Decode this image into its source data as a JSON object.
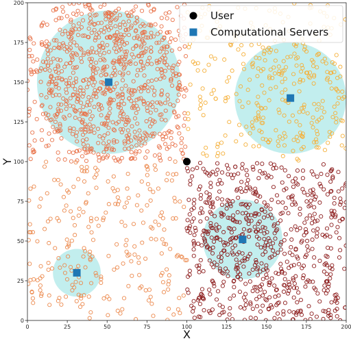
{
  "chart_data": {
    "type": "scatter",
    "title": "",
    "xlabel": "X",
    "ylabel": "Y",
    "xlim": [
      0,
      200
    ],
    "ylim": [
      0,
      200
    ],
    "xticks": [
      0,
      25,
      50,
      75,
      100,
      125,
      150,
      175,
      200
    ],
    "yticks": [
      0,
      25,
      50,
      75,
      100,
      125,
      150,
      175,
      200
    ],
    "grid": false,
    "legend": {
      "placement": "top-right",
      "entries": [
        {
          "name": "User",
          "marker": "circle",
          "color": "#000000"
        },
        {
          "name": "Computational Servers",
          "marker": "square",
          "color": "#1f77b4"
        }
      ]
    },
    "user": {
      "name": "User",
      "x": 100,
      "y": 100,
      "color": "#000000"
    },
    "servers": {
      "name": "Computational Servers",
      "color": "#1f77b4",
      "points": [
        {
          "x": 51,
          "y": 150
        },
        {
          "x": 165,
          "y": 140
        },
        {
          "x": 135,
          "y": 51
        },
        {
          "x": 31,
          "y": 30
        }
      ]
    },
    "coverage_regions": {
      "color": "#5fd3d3",
      "opacity": 0.38,
      "regions": [
        {
          "cx": 51,
          "cy": 150,
          "r": 45
        },
        {
          "cx": 165,
          "cy": 140,
          "r": 35
        },
        {
          "cx": 135,
          "cy": 51,
          "r": 25
        },
        {
          "cx": 31,
          "cy": 30,
          "r": 15
        }
      ]
    },
    "point_clouds": [
      {
        "color": "#e9734a",
        "region": {
          "x": [
            0,
            100
          ],
          "y": [
            100,
            200
          ]
        },
        "count": 520,
        "dense_circle": {
          "cx": 51,
          "cy": 150,
          "r": 45,
          "count": 400
        }
      },
      {
        "color": "#f5b03a",
        "region": {
          "x": [
            100,
            200
          ],
          "y": [
            100,
            200
          ]
        },
        "count": 220,
        "dense_circle": {
          "cx": 165,
          "cy": 140,
          "r": 35,
          "count": 110
        }
      },
      {
        "color": "#8c1c1c",
        "region": {
          "x": [
            100,
            200
          ],
          "y": [
            0,
            100
          ]
        },
        "count": 600,
        "dense_circle": {
          "cx": 135,
          "cy": 51,
          "r": 25,
          "count": 90
        }
      },
      {
        "color": "#ec8a4e",
        "region": {
          "x": [
            0,
            100
          ],
          "y": [
            0,
            100
          ]
        },
        "count": 240,
        "dense_circle": {
          "cx": 31,
          "cy": 30,
          "r": 15,
          "count": 15
        }
      }
    ]
  }
}
